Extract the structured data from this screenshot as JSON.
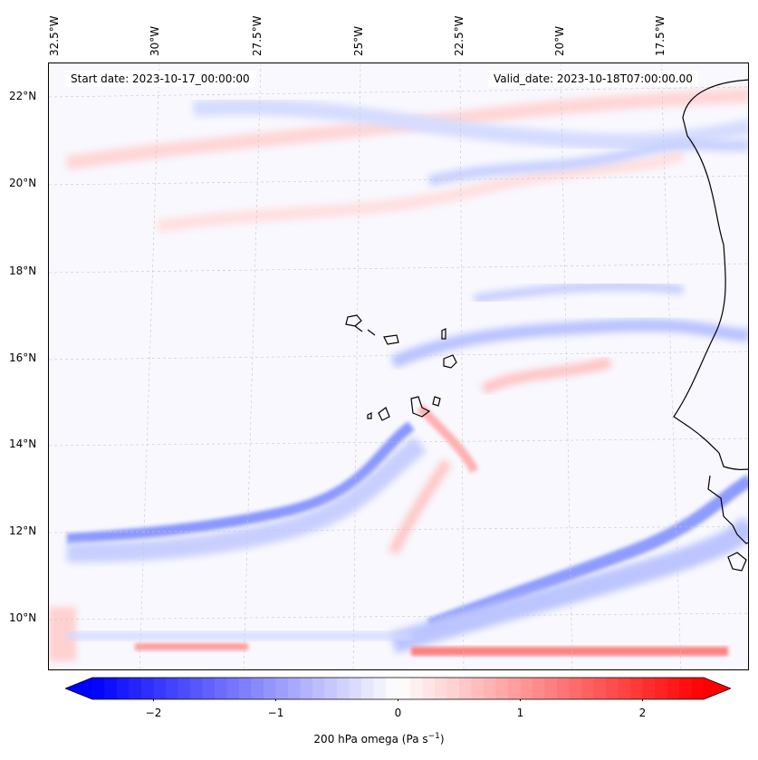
{
  "header": {
    "start_date": "Start date: 2023-10-17_00:00:00",
    "valid_date": "Valid_date: 2023-10-18T07:00:00.00"
  },
  "map": {
    "lon_labels": [
      "32.5°W",
      "30°W",
      "27.5°W",
      "25°W",
      "22.5°W",
      "20°W",
      "17.5°W"
    ],
    "lat_labels": [
      "22°N",
      "20°N",
      "18°N",
      "16°N",
      "14°N",
      "12°N",
      "10°N"
    ],
    "gridlines": true,
    "field": "200 hPa omega",
    "colormap": "bwr",
    "colors": {
      "negative": "#0000ff",
      "zero": "#ffffff",
      "positive": "#ff0000",
      "coast": "#000000"
    }
  },
  "colorbar": {
    "ticks": [
      "−2",
      "−1",
      "0",
      "1",
      "2"
    ],
    "tick_values": [
      -2,
      -1,
      0,
      1,
      2
    ],
    "range": [
      -2.5,
      2.5
    ],
    "label": "200 hPa omega (Pa s",
    "label_exp": "−1",
    "label_close": ")"
  }
}
